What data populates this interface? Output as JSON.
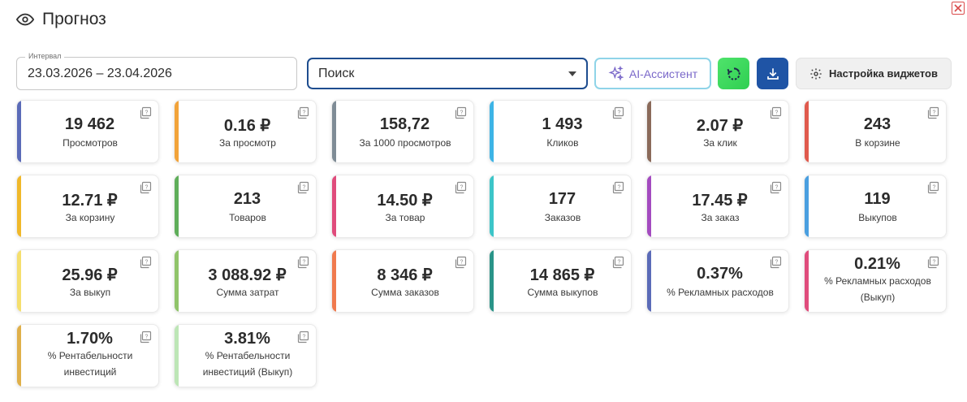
{
  "header": {
    "title": "Прогноз",
    "icon": "eye-icon"
  },
  "toolbar": {
    "interval_label": "Интервал",
    "interval_value": "23.03.2026 – 23.04.2026",
    "search_value": "Поиск",
    "ai_label": "AI-Ассистент",
    "settings_label": "Настройка виджетов"
  },
  "colors": {
    "primary": "#1f54a5",
    "refresh": "#3ad85c",
    "ai_border": "#8fd4e8",
    "ai_text": "#7a68c9",
    "close": "#d94b4b"
  },
  "cards": [
    {
      "value": "19 462",
      "label": "Просмотров",
      "color": "#5b6bb8"
    },
    {
      "value": "0.16 ₽",
      "label": "За просмотр",
      "color": "#f2a33a"
    },
    {
      "value": "158,72",
      "label": "За 1000 просмотров",
      "color": "#7f8c96"
    },
    {
      "value": "1 493",
      "label": "Кликов",
      "color": "#3db4e6"
    },
    {
      "value": "2.07 ₽",
      "label": "За клик",
      "color": "#8a6a5a"
    },
    {
      "value": "243",
      "label": "В корзине",
      "color": "#e05a4d"
    },
    {
      "value": "12.71 ₽",
      "label": "За корзину",
      "color": "#f0b82a"
    },
    {
      "value": "213",
      "label": "Товаров",
      "color": "#5fae5a"
    },
    {
      "value": "14.50 ₽",
      "label": "За товар",
      "color": "#e04c7c"
    },
    {
      "value": "177",
      "label": "Заказов",
      "color": "#3cc5c8"
    },
    {
      "value": "17.45 ₽",
      "label": "За заказ",
      "color": "#a44bc0"
    },
    {
      "value": "119",
      "label": "Выкупов",
      "color": "#4a9fe0"
    },
    {
      "value": "25.96 ₽",
      "label": "За выкуп",
      "color": "#f5df6e"
    },
    {
      "value": "3 088.92 ₽",
      "label": "Сумма затрат",
      "color": "#90c46a"
    },
    {
      "value": "8 346 ₽",
      "label": "Сумма заказов",
      "color": "#f07a4e"
    },
    {
      "value": "14 865 ₽",
      "label": "Сумма выкупов",
      "color": "#2a9488"
    },
    {
      "value": "0.37%",
      "label": "% Рекламных расходов",
      "color": "#5b6bb8"
    },
    {
      "value": "0.21%",
      "label": "% Рекламных расходов (Выкуп)",
      "color": "#e04c7c"
    },
    {
      "value": "1.70%",
      "label": "% Рентабельности инвестиций",
      "color": "#e0b04a"
    },
    {
      "value": "3.81%",
      "label": "% Рентабельности инвестиций (Выкуп)",
      "color": "#bde6b6"
    }
  ]
}
